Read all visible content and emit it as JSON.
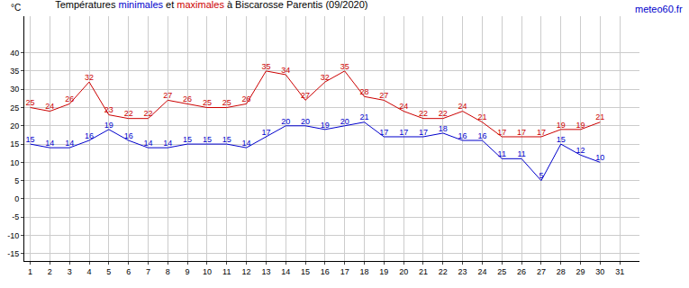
{
  "chart_data": {
    "type": "line",
    "title": "Températures minimales et maximales à Biscarosse Parentis (09/2020)",
    "y_label": "°C",
    "annotations": [
      "meteo60.fr"
    ],
    "x": [
      1,
      2,
      3,
      4,
      5,
      6,
      7,
      8,
      9,
      10,
      11,
      12,
      13,
      14,
      15,
      16,
      17,
      18,
      19,
      20,
      21,
      22,
      23,
      24,
      25,
      26,
      27,
      28,
      29,
      30
    ],
    "series": [
      {
        "name": "minimales",
        "color": "#0000cc",
        "values": [
          15,
          14,
          14,
          16,
          19,
          16,
          14,
          14,
          15,
          15,
          15,
          14,
          17,
          20,
          20,
          19,
          20,
          21,
          17,
          17,
          17,
          18,
          16,
          16,
          11,
          11,
          5,
          15,
          12,
          10
        ]
      },
      {
        "name": "maximales",
        "color": "#cc0000",
        "values": [
          25,
          24,
          26,
          32,
          23,
          22,
          22,
          27,
          26,
          25,
          25,
          26,
          35,
          34,
          27,
          32,
          35,
          28,
          27,
          24,
          22,
          22,
          24,
          21,
          17,
          17,
          17,
          19,
          19,
          21
        ]
      }
    ],
    "xlim": [
      0.7,
      32
    ],
    "xticks": [
      1,
      2,
      3,
      4,
      5,
      6,
      7,
      8,
      9,
      10,
      11,
      12,
      13,
      14,
      15,
      16,
      17,
      18,
      19,
      20,
      21,
      22,
      23,
      24,
      25,
      26,
      27,
      28,
      29,
      30,
      31
    ],
    "ylim": [
      -17,
      50
    ],
    "yticks": [
      -15,
      -10,
      -5,
      0,
      5,
      10,
      15,
      20,
      25,
      30,
      35,
      40
    ],
    "grid": true,
    "data_labels": true
  }
}
